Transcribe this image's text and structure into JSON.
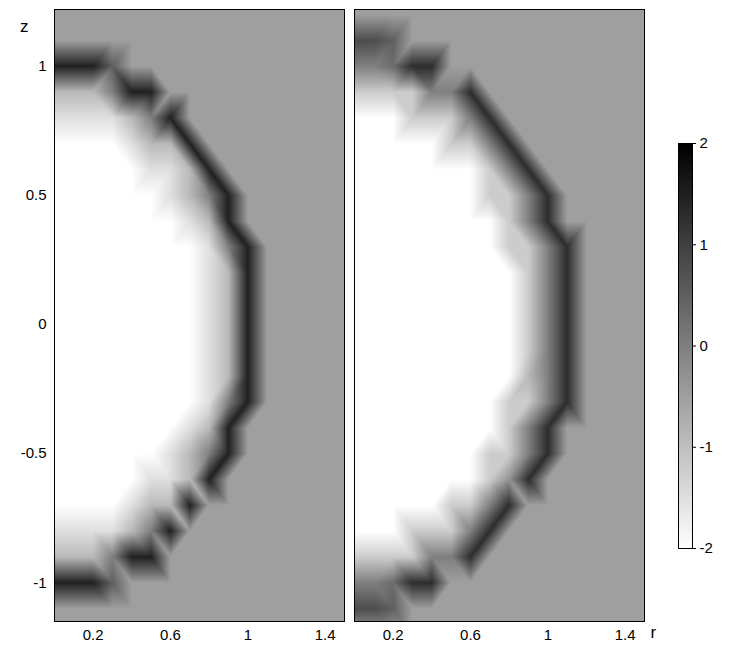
{
  "chart_data": {
    "type": "heatmap",
    "xlim": [
      0,
      1.5
    ],
    "xticks": [
      0.2,
      0.6,
      1,
      1.4
    ],
    "ylim": [
      -1.15,
      1.22
    ],
    "yticks": [
      -1,
      -0.5,
      0,
      0.5,
      1
    ],
    "r": [
      0,
      0.1,
      0.2,
      0.3,
      0.4,
      0.5,
      0.6,
      0.7,
      0.8,
      0.9,
      1.0,
      1.1,
      1.2,
      1.3,
      1.4,
      1.5
    ],
    "z": [
      1.2,
      1.1,
      1.0,
      0.9,
      0.8,
      0.7,
      0.6,
      0.5,
      0.4,
      0.3,
      0.2,
      0.1,
      0,
      -0.1,
      -0.2,
      -0.3,
      -0.4,
      -0.5,
      -0.6,
      -0.7,
      -0.8,
      -0.9,
      -1.0,
      -1.1,
      -1.2
    ],
    "colorbar": {
      "range": [
        -2,
        2
      ],
      "ticks": [
        2,
        1,
        0,
        -1,
        -2
      ]
    },
    "panels": [
      {
        "y_label": "z",
        "cells": [
          [
            -0.5,
            -0.5,
            -0.5,
            -0.5,
            -0.5,
            -0.5,
            -0.5,
            -0.5,
            -0.5,
            -0.5,
            -0.5,
            -0.5,
            -0.5,
            -0.5,
            -0.5,
            -0.5
          ],
          [
            -0.5,
            -0.5,
            -0.5,
            -0.5,
            -0.5,
            -0.5,
            -0.5,
            -0.5,
            -0.5,
            -0.5,
            -0.5,
            -0.5,
            -0.5,
            -0.5,
            -0.5,
            -0.5
          ],
          [
            1.5,
            1.5,
            1.5,
            0.5,
            -0.5,
            -0.5,
            -0.5,
            -0.5,
            -0.5,
            -0.5,
            -0.5,
            -0.5,
            -0.5,
            -0.5,
            -0.5,
            -0.5
          ],
          [
            -0.9,
            -0.9,
            -0.9,
            0,
            1.5,
            1.5,
            -0.5,
            -0.5,
            -0.5,
            -0.5,
            -0.5,
            -0.5,
            -0.5,
            -0.5,
            -0.5,
            -0.5
          ],
          [
            -1.5,
            -1.5,
            -1.5,
            -1.5,
            -0.9,
            0,
            1.5,
            -0.5,
            -0.5,
            -0.5,
            -0.5,
            -0.5,
            -0.5,
            -0.5,
            -0.5,
            -0.5
          ],
          [
            -2,
            -2,
            -2,
            -2,
            -1.5,
            -0.9,
            -0.9,
            1.5,
            -0.5,
            -0.5,
            -0.5,
            -0.5,
            -0.5,
            -0.5,
            -0.5,
            -0.5
          ],
          [
            -2,
            -2,
            -2,
            -2,
            -2,
            -1.5,
            -1.5,
            -0.9,
            1.5,
            -0.5,
            -0.5,
            -0.5,
            -0.5,
            -0.5,
            -0.5,
            -0.5
          ],
          [
            -2,
            -2,
            -2,
            -2,
            -2,
            -2,
            -1.5,
            -0.9,
            0,
            1.5,
            -0.5,
            -0.5,
            -0.5,
            -0.5,
            -0.5,
            -0.5
          ],
          [
            -2,
            -2,
            -2,
            -2,
            -2,
            -2,
            -2,
            -1.5,
            -0.9,
            1.5,
            -0.5,
            -0.5,
            -0.5,
            -0.5,
            -0.5,
            -0.5
          ],
          [
            -2,
            -2,
            -2,
            -2,
            -2,
            -2,
            -2,
            -2,
            -1.5,
            0,
            1.5,
            -0.5,
            -0.5,
            -0.5,
            -0.5,
            -0.5
          ],
          [
            -2,
            -2,
            -2,
            -2,
            -2,
            -2,
            -2,
            -2,
            -1.5,
            -0.9,
            1.5,
            -0.5,
            -0.5,
            -0.5,
            -0.5,
            -0.5
          ],
          [
            -2,
            -2,
            -2,
            -2,
            -2,
            -2,
            -2,
            -2,
            -1.5,
            -0.9,
            1.5,
            -0.5,
            -0.5,
            -0.5,
            -0.5,
            -0.5
          ],
          [
            -2,
            -2,
            -2,
            -2,
            -2,
            -2,
            -2,
            -2,
            -1.5,
            -0.9,
            1.5,
            -0.5,
            -0.5,
            -0.5,
            -0.5,
            -0.5
          ],
          [
            -2,
            -2,
            -2,
            -2,
            -2,
            -2,
            -2,
            -2,
            -1.5,
            -0.9,
            1.5,
            -0.5,
            -0.5,
            -0.5,
            -0.5,
            -0.5
          ],
          [
            -2,
            -2,
            -2,
            -2,
            -2,
            -2,
            -2,
            -2,
            -1.5,
            -0.9,
            1.5,
            -0.5,
            -0.5,
            -0.5,
            -0.5,
            -0.5
          ],
          [
            -2,
            -2,
            -2,
            -2,
            -2,
            -2,
            -2,
            -2,
            -1.5,
            0,
            1.5,
            -0.5,
            -0.5,
            -0.5,
            -0.5,
            -0.5
          ],
          [
            -2,
            -2,
            -2,
            -2,
            -2,
            -2,
            -2,
            -1.5,
            -0.9,
            1.5,
            -0.5,
            -0.5,
            -0.5,
            -0.5,
            -0.5,
            -0.5
          ],
          [
            -2,
            -2,
            -2,
            -2,
            -2,
            -2,
            -1.5,
            -0.9,
            0,
            1.5,
            -0.5,
            -0.5,
            -0.5,
            -0.5,
            -0.5,
            -0.5
          ],
          [
            -2,
            -2,
            -2,
            -2,
            -2,
            -1.5,
            -1.5,
            -0.9,
            1.5,
            -0.5,
            -0.5,
            -0.5,
            -0.5,
            -0.5,
            -0.5,
            -0.5
          ],
          [
            -2,
            -2,
            -2,
            -2,
            -1.5,
            -0.9,
            -0.9,
            1.5,
            -0.5,
            -0.5,
            -0.5,
            -0.5,
            -0.5,
            -0.5,
            -0.5,
            -0.5
          ],
          [
            -1.5,
            -1.5,
            -1.5,
            -1.5,
            -0.9,
            0,
            1.5,
            -0.5,
            -0.5,
            -0.5,
            -0.5,
            -0.5,
            -0.5,
            -0.5,
            -0.5,
            -0.5
          ],
          [
            -0.9,
            -0.9,
            -0.9,
            0,
            1.5,
            1.5,
            -0.5,
            -0.5,
            -0.5,
            -0.5,
            -0.5,
            -0.5,
            -0.5,
            -0.5,
            -0.5,
            -0.5
          ],
          [
            1.5,
            1.5,
            1.5,
            0.5,
            -0.5,
            -0.5,
            -0.5,
            -0.5,
            -0.5,
            -0.5,
            -0.5,
            -0.5,
            -0.5,
            -0.5,
            -0.5,
            -0.5
          ],
          [
            -0.5,
            -0.5,
            -0.5,
            -0.5,
            -0.5,
            -0.5,
            -0.5,
            -0.5,
            -0.5,
            -0.5,
            -0.5,
            -0.5,
            -0.5,
            -0.5,
            -0.5,
            -0.5
          ],
          [
            -0.5,
            -0.5,
            -0.5,
            -0.5,
            -0.5,
            -0.5,
            -0.5,
            -0.5,
            -0.5,
            -0.5,
            -0.5,
            -0.5,
            -0.5,
            -0.5,
            -0.5,
            -0.5
          ]
        ]
      },
      {
        "x_label": "r",
        "tick_labels": "x",
        "cells": [
          [
            -0.5,
            -0.5,
            -0.5,
            -0.5,
            -0.5,
            -0.5,
            -0.5,
            -0.5,
            -0.5,
            -0.5,
            -0.5,
            -0.5,
            -0.5,
            -0.5,
            -0.5,
            -0.5
          ],
          [
            0.8,
            0.8,
            0.5,
            -0.5,
            -0.5,
            -0.5,
            -0.5,
            -0.5,
            -0.5,
            -0.5,
            -0.5,
            -0.5,
            -0.5,
            -0.5,
            -0.5,
            -0.5
          ],
          [
            0,
            0,
            0.3,
            1.3,
            1.3,
            -0.5,
            -0.5,
            -0.5,
            -0.5,
            -0.5,
            -0.5,
            -0.5,
            -0.5,
            -0.5,
            -0.5,
            -0.5
          ],
          [
            -1.2,
            -1.2,
            -1.2,
            -1.2,
            0,
            0,
            1.3,
            -0.5,
            -0.5,
            -0.5,
            -0.5,
            -0.5,
            -0.5,
            -0.5,
            -0.5,
            -0.5
          ],
          [
            -2,
            -2,
            -2,
            -1.2,
            -1.2,
            -1.2,
            0,
            1.3,
            -0.5,
            -0.5,
            -0.5,
            -0.5,
            -0.5,
            -0.5,
            -0.5,
            -0.5
          ],
          [
            -2,
            -2,
            -2,
            -2,
            -2,
            -1.2,
            -1.2,
            0,
            1.3,
            -0.5,
            -0.5,
            -0.5,
            -0.5,
            -0.5,
            -0.5,
            -0.5
          ],
          [
            -2,
            -2,
            -2,
            -2,
            -2,
            -2,
            -2,
            -1.2,
            0,
            1.3,
            -0.5,
            -0.5,
            -0.5,
            -0.5,
            -0.5,
            -0.5
          ],
          [
            -2,
            -2,
            -2,
            -2,
            -2,
            -2,
            -2,
            -1.2,
            -1.2,
            0,
            1.3,
            -0.5,
            -0.5,
            -0.5,
            -0.5,
            -0.5
          ],
          [
            -2,
            -2,
            -2,
            -2,
            -2,
            -2,
            -2,
            -2,
            -1.2,
            0,
            1.3,
            -0.5,
            -0.5,
            -0.5,
            -0.5,
            -0.5
          ],
          [
            -2,
            -2,
            -2,
            -2,
            -2,
            -2,
            -2,
            -2,
            -1.2,
            -1.2,
            0,
            1.3,
            -0.5,
            -0.5,
            -0.5,
            -0.5
          ],
          [
            -2,
            -2,
            -2,
            -2,
            -2,
            -2,
            -2,
            -2,
            -2,
            -1.2,
            0,
            1.3,
            -0.5,
            -0.5,
            -0.5,
            -0.5
          ],
          [
            -2,
            -2,
            -2,
            -2,
            -2,
            -2,
            -2,
            -2,
            -2,
            -1.2,
            0,
            1.3,
            -0.5,
            -0.5,
            -0.5,
            -0.5
          ],
          [
            -2,
            -2,
            -2,
            -2,
            -2,
            -2,
            -2,
            -2,
            -2,
            -1.2,
            0,
            1.3,
            -0.5,
            -0.5,
            -0.5,
            -0.5
          ],
          [
            -2,
            -2,
            -2,
            -2,
            -2,
            -2,
            -2,
            -2,
            -2,
            -1.2,
            0,
            1.3,
            -0.5,
            -0.5,
            -0.5,
            -0.5
          ],
          [
            -2,
            -2,
            -2,
            -2,
            -2,
            -2,
            -2,
            -2,
            -2,
            -0.9,
            0,
            1.3,
            -0.5,
            -0.5,
            -0.5,
            -0.5
          ],
          [
            -2,
            -2,
            -2,
            -2,
            -2,
            -2,
            -2,
            -2,
            -1.2,
            -1.2,
            0,
            1.3,
            -0.5,
            -0.5,
            -0.5,
            -0.5
          ],
          [
            -2,
            -2,
            -2,
            -2,
            -2,
            -2,
            -2,
            -2,
            -1.2,
            0,
            1.3,
            -0.5,
            -0.5,
            -0.5,
            -0.5,
            -0.5
          ],
          [
            -2,
            -2,
            -2,
            -2,
            -2,
            -2,
            -2,
            -1.2,
            -1.2,
            0,
            1.3,
            -0.5,
            -0.5,
            -0.5,
            -0.5,
            -0.5
          ],
          [
            -2,
            -2,
            -2,
            -2,
            -2,
            -2,
            -2,
            -1.2,
            -0.3,
            1.3,
            -0.5,
            -0.5,
            -0.5,
            -0.5,
            -0.5,
            -0.5
          ],
          [
            -2,
            -2,
            -2,
            -2,
            -2,
            -1.2,
            -1.2,
            0,
            1.3,
            -0.5,
            -0.5,
            -0.5,
            -0.5,
            -0.5,
            -0.5,
            -0.5
          ],
          [
            -2,
            -2,
            -2,
            -1.2,
            -1.2,
            -1.2,
            0,
            1.3,
            -0.5,
            -0.5,
            -0.5,
            -0.5,
            -0.5,
            -0.5,
            -0.5,
            -0.5
          ],
          [
            -1.2,
            -1.2,
            -1.2,
            -1.2,
            0,
            0,
            1.3,
            -0.5,
            -0.5,
            -0.5,
            -0.5,
            -0.5,
            -0.5,
            -0.5,
            -0.5,
            -0.5
          ],
          [
            0,
            0,
            0.3,
            1.3,
            1.3,
            -0.5,
            -0.5,
            -0.5,
            -0.5,
            -0.5,
            -0.5,
            -0.5,
            -0.5,
            -0.5,
            -0.5,
            -0.5
          ],
          [
            0.8,
            0.8,
            0.5,
            -0.5,
            -0.5,
            -0.5,
            -0.5,
            -0.5,
            -0.5,
            -0.5,
            -0.5,
            -0.5,
            -0.5,
            -0.5,
            -0.5,
            -0.5
          ],
          [
            -0.5,
            -0.5,
            -0.5,
            -0.5,
            -0.5,
            -0.5,
            -0.5,
            -0.5,
            -0.5,
            -0.5,
            -0.5,
            -0.5,
            -0.5,
            -0.5,
            -0.5,
            -0.5
          ]
        ]
      }
    ]
  }
}
